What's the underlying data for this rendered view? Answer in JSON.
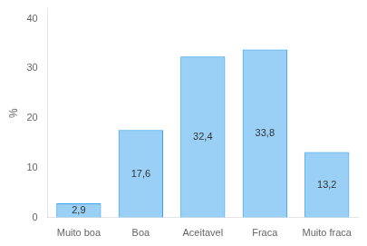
{
  "chart_data": {
    "type": "bar",
    "categories": [
      "Muito boa",
      "Boa",
      "Aceitavel",
      "Fraca",
      "Muito fraca"
    ],
    "values": [
      2.9,
      17.6,
      32.4,
      33.8,
      13.2
    ],
    "value_labels": [
      "2,9",
      "17,6",
      "32,4",
      "33,8",
      "13,2"
    ],
    "data_labels": true,
    "ylabel": "%",
    "ylim": [
      0,
      42
    ],
    "yticks": [
      0,
      10,
      20,
      30,
      40
    ],
    "grid": false
  }
}
